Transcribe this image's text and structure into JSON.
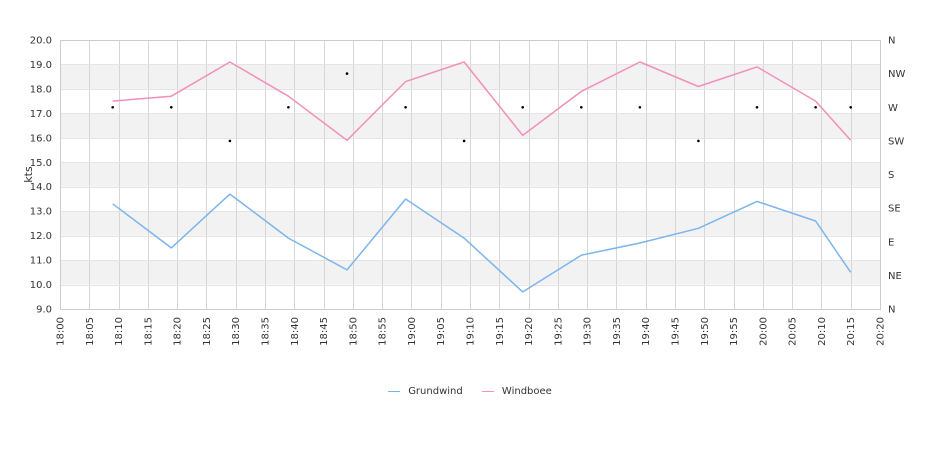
{
  "chart_data": {
    "type": "line",
    "ylabel": "kts",
    "ylim": [
      9,
      20
    ],
    "y_ticks": [
      "20.0",
      "19.0",
      "18.0",
      "17.0",
      "16.0",
      "15.0",
      "14.0",
      "13.0",
      "12.0",
      "11.0",
      "10.0",
      "9.0"
    ],
    "x_ticks": [
      "18:00",
      "18:05",
      "18:10",
      "18:15",
      "18:20",
      "18:25",
      "18:30",
      "18:35",
      "18:40",
      "18:45",
      "18:50",
      "18:55",
      "19:00",
      "19:05",
      "19:10",
      "19:15",
      "19:20",
      "19:25",
      "19:30",
      "19:35",
      "19:40",
      "19:45",
      "19:50",
      "19:55",
      "20:00",
      "20:05",
      "20:10",
      "20:15",
      "20:20"
    ],
    "direction_ticks": [
      "N",
      "NW",
      "W",
      "SW",
      "S",
      "SE",
      "E",
      "NE",
      "N"
    ],
    "x": [
      "18:09",
      "18:19",
      "18:29",
      "18:39",
      "18:49",
      "18:59",
      "19:09",
      "19:19",
      "19:29",
      "19:39",
      "19:49",
      "19:59",
      "20:09",
      "20:15"
    ],
    "series": [
      {
        "name": "Grundwind",
        "color": "#7cb5ec",
        "values": [
          13.3,
          11.5,
          13.7,
          11.9,
          10.6,
          13.5,
          11.9,
          9.7,
          11.2,
          11.7,
          12.3,
          13.4,
          12.6,
          10.5
        ]
      },
      {
        "name": "Windboee",
        "color": "#f28fba",
        "values": [
          17.5,
          17.7,
          19.1,
          17.7,
          15.9,
          18.3,
          19.1,
          16.1,
          17.9,
          19.1,
          18.1,
          18.9,
          17.5,
          15.9
        ]
      }
    ],
    "direction_series": {
      "name": "direction",
      "values": [
        "W",
        "W",
        "SW",
        "W",
        "NW",
        "W",
        "SW",
        "W",
        "W",
        "W",
        "SW",
        "W",
        "W",
        "W"
      ]
    },
    "grid": true,
    "legend_position": "bottom"
  }
}
